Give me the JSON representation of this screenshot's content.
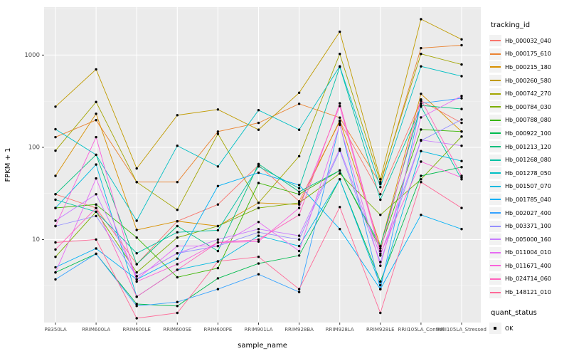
{
  "figure": {
    "background": "#FFFFFF",
    "panel_background": "#EBEBEB",
    "grid_major_color": "#FFFFFF",
    "grid_minor_color": "#F5F5F5",
    "tick_color": "#333333",
    "tick_label_color": "#4D4D4D",
    "axis_title_color": "#000000",
    "point_color": "#000000"
  },
  "axes": {
    "x_title": "sample_name",
    "y_title": "FPKM + 1"
  },
  "chart_data": {
    "type": "line",
    "title": "",
    "xlabel": "sample_name",
    "ylabel": "FPKM + 1",
    "y_scale": "log10",
    "grid": true,
    "legend_position": "right",
    "y_ticks": [
      10,
      100,
      1000
    ],
    "y_tick_labels": [
      "10",
      "100",
      "1000"
    ],
    "y_minor_ticks": [
      3.162,
      31.62,
      316.2,
      3162
    ],
    "ylim_log": [
      0.1,
      3.52
    ],
    "categories": [
      "PB350LA",
      "RRIM600LA",
      "RRIM600LE",
      "RRIM600SE",
      "RRIM600PE",
      "RRIM901LA",
      "RRIM928BA",
      "RRIM928LA",
      "RRIM928LE",
      "RRII105LA_Control",
      "RRII105LA_Stressed"
    ],
    "series": [
      {
        "name": "Hb_000032_040",
        "color": "#F8766D",
        "values": [
          31,
          22,
          5.4,
          15.8,
          24,
          64,
          26,
          190,
          31,
          320,
          184
        ]
      },
      {
        "name": "Hb_000175_610",
        "color": "#EA8331",
        "values": [
          129,
          197,
          42,
          42,
          148,
          184,
          296,
          210,
          40,
          1190,
          1280
        ]
      },
      {
        "name": "Hb_000215_180",
        "color": "#D89000",
        "values": [
          49,
          231,
          12.7,
          15.8,
          14,
          25,
          24,
          195,
          8.5,
          380,
          148
        ]
      },
      {
        "name": "Hb_000260_580",
        "color": "#C09B00",
        "values": [
          276,
          700,
          59,
          223,
          257,
          155,
          390,
          1790,
          45,
          2450,
          1480
        ]
      },
      {
        "name": "Hb_000742_270",
        "color": "#A3A500",
        "values": [
          92,
          310,
          42,
          21,
          140,
          25,
          80,
          1030,
          42,
          1030,
          790
        ]
      },
      {
        "name": "Hb_000784_030",
        "color": "#7CAE00",
        "values": [
          6.5,
          20,
          4.4,
          10.5,
          14,
          22,
          25,
          52,
          18.5,
          45,
          131
        ]
      },
      {
        "name": "Hb_000788_080",
        "color": "#39B600",
        "values": [
          22,
          24,
          10.5,
          3.9,
          4.9,
          41,
          31,
          56,
          8,
          156,
          148
        ]
      },
      {
        "name": "Hb_000922_100",
        "color": "#00BB4E",
        "values": [
          4.4,
          7,
          2.0,
          1.9,
          3.8,
          5.5,
          6.7,
          45,
          3.5,
          49,
          61
        ]
      },
      {
        "name": "Hb_001213_120",
        "color": "#00BF7D",
        "values": [
          31,
          83,
          5.4,
          14,
          7.5,
          66,
          33,
          56,
          8.5,
          285,
          260
        ]
      },
      {
        "name": "Hb_001268_080",
        "color": "#00C1A3",
        "values": [
          27,
          20,
          7.1,
          12,
          12.6,
          62,
          36,
          745,
          27,
          276,
          45
        ]
      },
      {
        "name": "Hb_001278_050",
        "color": "#00BFC4",
        "values": [
          157,
          83,
          16,
          104,
          62,
          253,
          155,
          755,
          37,
          755,
          590
        ]
      },
      {
        "name": "Hb_001507_070",
        "color": "#00BAE0",
        "values": [
          22,
          65,
          2.4,
          4.7,
          5.8,
          11,
          8.5,
          45,
          3.2,
          91,
          71
        ]
      },
      {
        "name": "Hb_001785_040",
        "color": "#00B0F6",
        "values": [
          5.0,
          8,
          3.7,
          6.2,
          38,
          53,
          39,
          13,
          2.9,
          18.5,
          13
        ]
      },
      {
        "name": "Hb_002027_400",
        "color": "#35A2FF",
        "values": [
          3.7,
          7,
          1.9,
          2.1,
          2.9,
          4.2,
          2.7,
          180,
          2.9,
          300,
          340
        ]
      },
      {
        "name": "Hb_003371_100",
        "color": "#9590FF",
        "values": [
          14,
          18,
          4.0,
          7.1,
          8.5,
          12,
          10,
          92,
          5.7,
          118,
          200
        ]
      },
      {
        "name": "Hb_005000_160",
        "color": "#C77CFF",
        "values": [
          16,
          31,
          4.0,
          7.1,
          10,
          13,
          11,
          96,
          6.7,
          120,
          104
        ]
      },
      {
        "name": "Hb_011004_010",
        "color": "#E76BF3",
        "values": [
          4.4,
          46,
          3.7,
          8.5,
          8.5,
          15.5,
          7.5,
          175,
          5.2,
          211,
          360
        ]
      },
      {
        "name": "Hb_011671_400",
        "color": "#FA62DB",
        "values": [
          14,
          129,
          3.5,
          5.4,
          9.3,
          9.5,
          22,
          280,
          7,
          70,
          47
        ]
      },
      {
        "name": "Hb_024714_060",
        "color": "#FF62BC",
        "values": [
          7.8,
          22,
          2.4,
          4.7,
          9.3,
          10,
          18.5,
          300,
          7.5,
          330,
          49
        ]
      },
      {
        "name": "Hb_148121_010",
        "color": "#FF6A98",
        "values": [
          9.3,
          10,
          1.4,
          1.6,
          5.8,
          6.5,
          2.9,
          22.5,
          1.6,
          42,
          22
        ]
      }
    ]
  },
  "legend": {
    "tracking_title": "tracking_id",
    "quant_title": "quant_status",
    "quant_items": [
      {
        "label": "OK"
      }
    ]
  }
}
